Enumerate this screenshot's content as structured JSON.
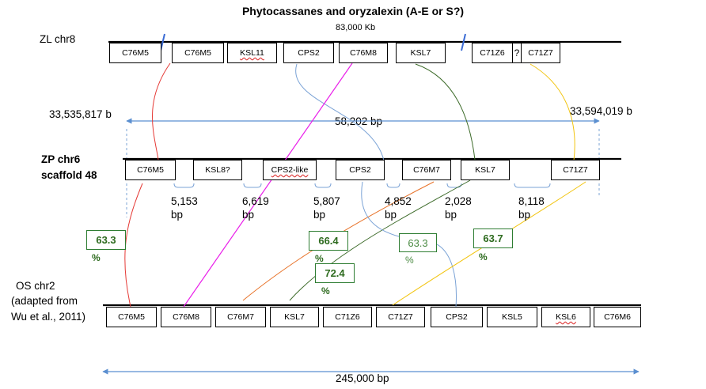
{
  "title": "Phytocassanes and oryzalexin (A-E or S?)",
  "zl": {
    "label": "ZL chr8",
    "size_label": "83,000 Kb",
    "genes": [
      "C76M5",
      "C76M5",
      "KSL11",
      "CPS2",
      "C76M8",
      "KSL7",
      "C71Z6",
      "?",
      "C71Z7"
    ]
  },
  "span": {
    "left": "33,535,817 b",
    "right": "33,594,019 b",
    "length": "58,202 bp"
  },
  "zp": {
    "label_line1": "ZP chr6",
    "label_line2": "scaffold 48",
    "genes": [
      "C76M5",
      "KSL8?",
      "CPS2-like",
      "CPS2",
      "C76M7",
      "KSL7",
      "C71Z7"
    ],
    "gaps": [
      {
        "value": "5,153",
        "unit": "bp"
      },
      {
        "value": "6,619",
        "unit": "bp"
      },
      {
        "value": "5,807",
        "unit": "bp"
      },
      {
        "value": "4,852",
        "unit": "bp"
      },
      {
        "value": "2,028",
        "unit": "bp"
      },
      {
        "value": "8,118",
        "unit": "bp"
      }
    ]
  },
  "identities": [
    {
      "value": "63.3",
      "unit": "%"
    },
    {
      "value": "66.4",
      "unit": "%"
    },
    {
      "value": "63.3",
      "unit": "%"
    },
    {
      "value": "63.7",
      "unit": "%"
    },
    {
      "value": "72.4",
      "unit": "%"
    }
  ],
  "os": {
    "label_line1": "OS chr2",
    "label_line2": "(adapted from",
    "label_line3": "Wu et al., 2011)",
    "genes": [
      "C76M5",
      "C76M8",
      "C76M7",
      "KSL7",
      "C71Z6",
      "C71Z7",
      "CPS2",
      "KSL5",
      "KSL6",
      "C76M6"
    ],
    "length": "245,000 bp"
  },
  "colors": {
    "red": "#e53935",
    "magenta": "#e91ee9",
    "blue": "#7ba3d6",
    "darkgreen": "#3d6b2a",
    "yellow": "#f2c40f",
    "orange": "#e8732a",
    "green_text": "#2e6b1f",
    "arrow": "#5b8fd0"
  }
}
